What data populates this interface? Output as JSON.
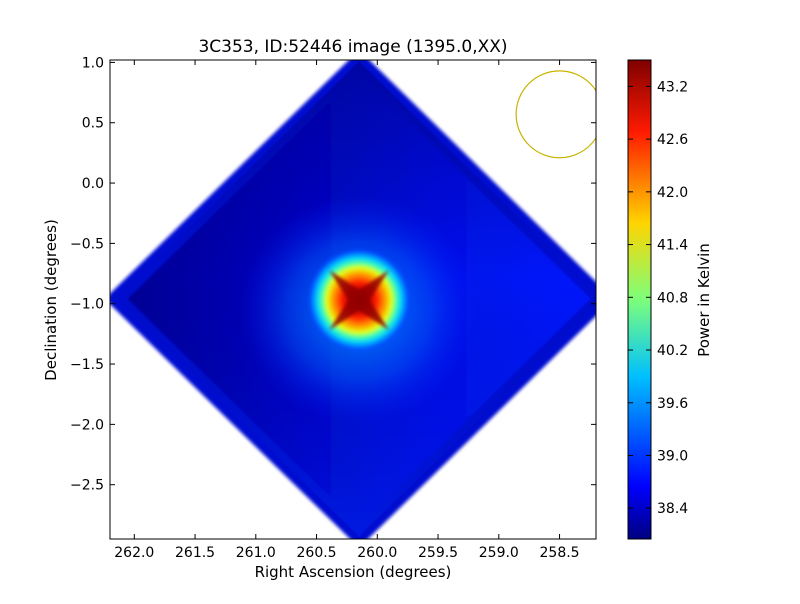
{
  "chart_data": {
    "type": "heatmap",
    "title": "3C353, ID:52446 image (1395.0,XX)",
    "xlabel": "Right Ascension (degrees)",
    "ylabel": "Declination (degrees)",
    "xlim": [
      262.2,
      258.2
    ],
    "ylim": [
      -2.95,
      1.02
    ],
    "x_ticks": [
      262.0,
      261.5,
      261.0,
      260.5,
      260.0,
      259.5,
      259.0,
      258.5
    ],
    "x_tick_labels": [
      "262.0",
      "261.5",
      "261.0",
      "260.5",
      "260.0",
      "259.5",
      "259.0",
      "258.5"
    ],
    "y_ticks": [
      1.0,
      0.5,
      0.0,
      -0.5,
      -1.0,
      -1.5,
      -2.0,
      -2.5
    ],
    "y_tick_labels": [
      "1.0",
      "0.5",
      "0.0",
      "−0.5",
      "−1.0",
      "−1.5",
      "−2.0",
      "−2.5"
    ],
    "colormap": "jet",
    "colorbar": {
      "label": "Power in Kelvin",
      "range": [
        38.05,
        43.5
      ],
      "ticks": [
        38.4,
        39.0,
        39.6,
        40.2,
        40.8,
        41.4,
        42.0,
        42.6,
        43.2
      ],
      "tick_labels": [
        "38.4",
        "39.0",
        "39.6",
        "40.2",
        "40.8",
        "41.4",
        "42.0",
        "42.6",
        "43.2"
      ]
    },
    "field": {
      "shape": "diamond",
      "center_ra": 260.15,
      "center_dec": -0.96,
      "half_width_ra": 2.0,
      "half_height_dec": 1.97,
      "background_level": 38.3
    },
    "peak": {
      "ra": 260.15,
      "dec": -0.97,
      "value": 43.5
    },
    "beam_circle": {
      "ra": 258.5,
      "dec": 0.57,
      "radius_dec": 0.36,
      "color": "#c8b400"
    }
  }
}
